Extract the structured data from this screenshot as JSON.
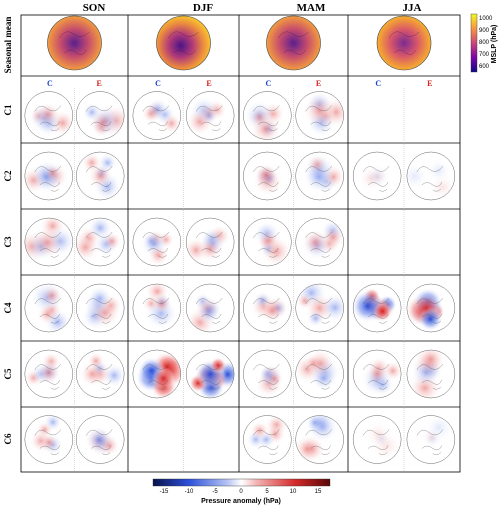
{
  "seasons": [
    "SON",
    "DJF",
    "MAM",
    "JJA"
  ],
  "row_labels": [
    "Seasonal mean",
    "C1",
    "C2",
    "C3",
    "C4",
    "C5",
    "C6"
  ],
  "sub_labels": {
    "c": "C",
    "e": "E"
  },
  "colors": {
    "c_label": "#1a3fcf",
    "e_label": "#d42020",
    "grid": "#000000"
  },
  "mslp_colorbar": {
    "label": "MSLP (hPa)",
    "ticks": [
      "1000",
      "900",
      "800",
      "700",
      "600"
    ],
    "colormap": "plasma"
  },
  "anomaly_colorbar": {
    "label": "Pressure anomaly (hPa)",
    "ticks": [
      "-15",
      "-10",
      "-5",
      "0",
      "5",
      "10",
      "15"
    ],
    "colormap": "blue-white-red"
  },
  "chart_data": {
    "type": "heatmap",
    "description_of_grid": "Polar stereographic MSLP maps: seasonal mean and cluster anomalies for control (C) and experiment (E)",
    "vlim_anomaly": [
      -17,
      17
    ],
    "vlim_mslp": [
      600,
      1020
    ],
    "panels": {
      "SON": [
        "C1",
        "C2",
        "C3",
        "C4",
        "C5",
        "C6"
      ],
      "DJF": [
        "C1",
        "C3",
        "C4",
        "C5"
      ],
      "MAM": [
        "C1",
        "C2",
        "C3",
        "C4",
        "C5",
        "C6"
      ],
      "JJA": [
        "C2",
        "C4",
        "C5",
        "C6"
      ]
    }
  }
}
